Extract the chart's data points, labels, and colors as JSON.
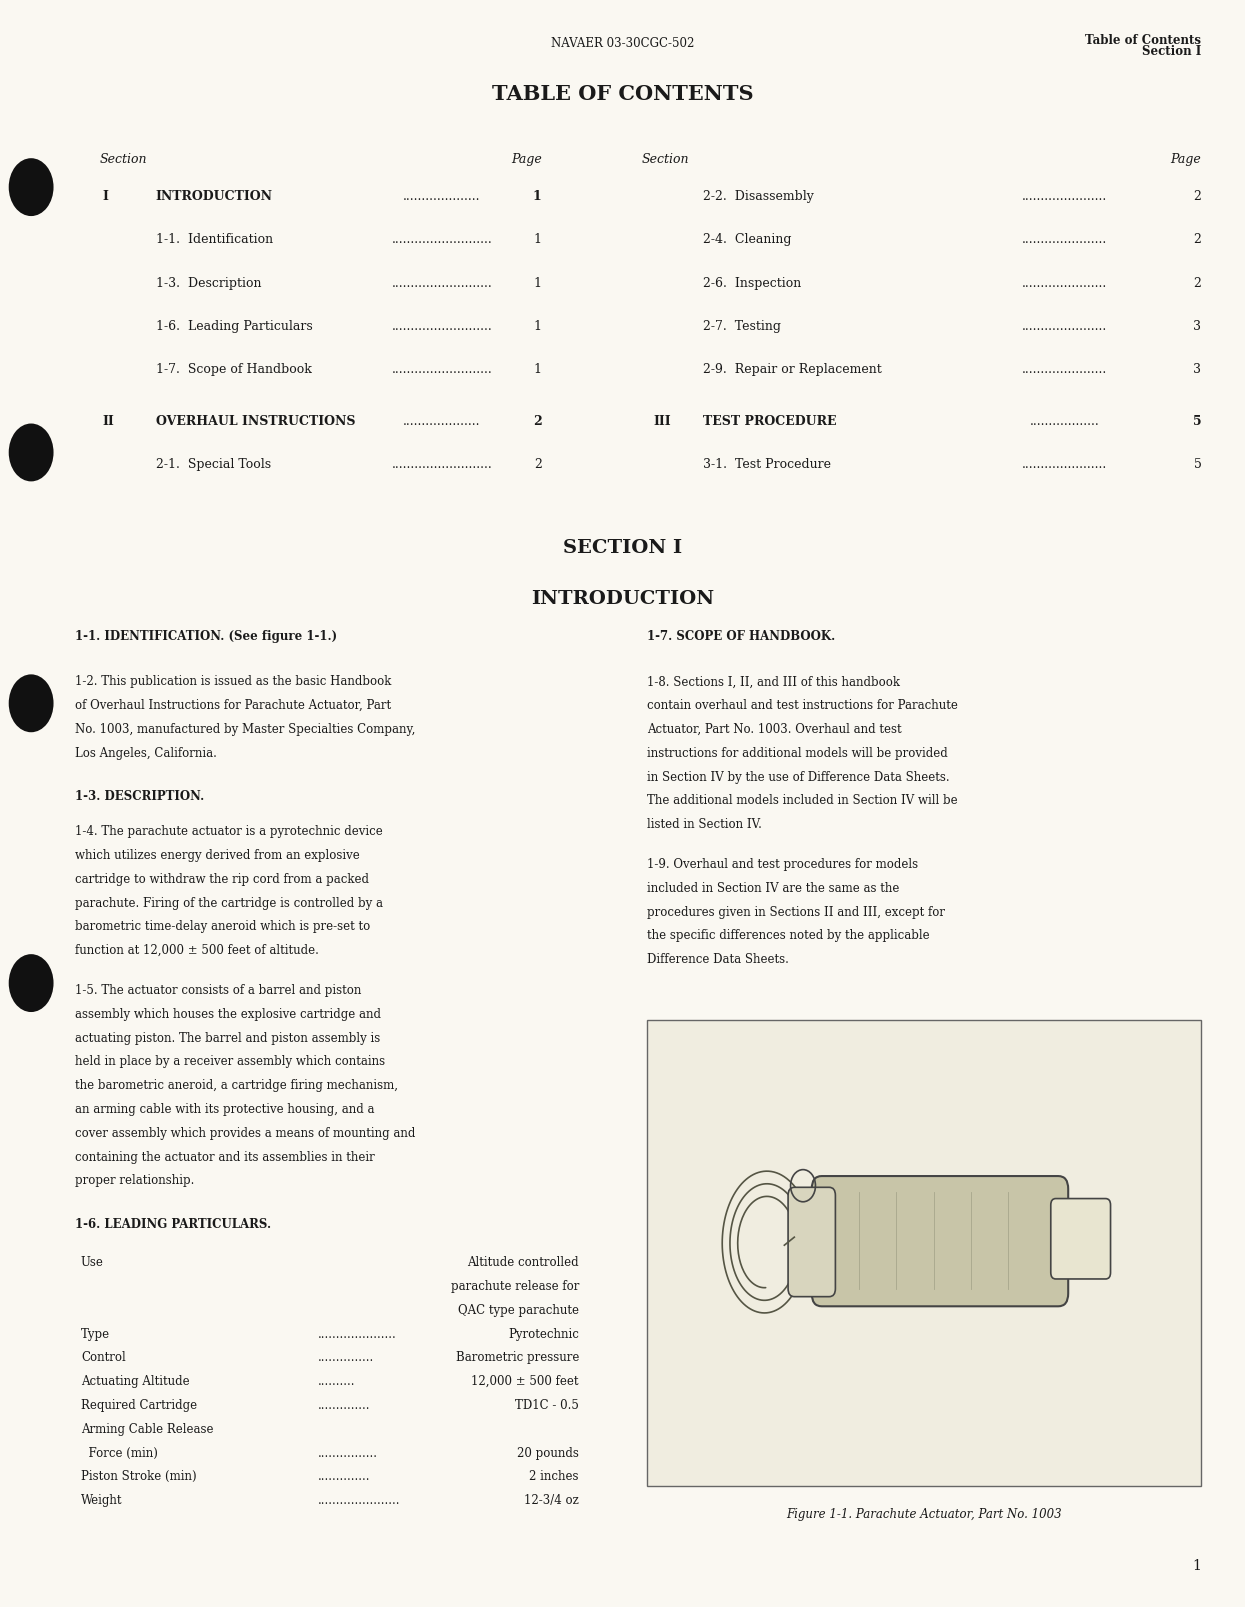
{
  "bg_color": "#faf8f2",
  "text_color": "#1a1a1a",
  "header_left": "NAVAER 03-30CGC-502",
  "header_right_line1": "Table of Contents",
  "header_right_line2": "Section I",
  "toc_title": "TABLE OF CONTENTS",
  "section_i_title": "SECTION I",
  "section_i_subtitle": "INTRODUCTION",
  "para_1_1_header": "1-1. IDENTIFICATION. (See figure 1-1.)",
  "para_1_7_header": "1-7. SCOPE OF HANDBOOK.",
  "para_1_2_text": "1-2. This publication is issued as the basic Handbook of Overhaul Instructions for Parachute Actuator, Part No. 1003, manufactured by Master Specialties Company, Los Angeles, California.",
  "para_1_8_text": "1-8. Sections I, II, and III of this handbook contain overhaul and test instructions for Parachute Actuator, Part No. 1003. Overhaul and test instructions for additional models will be provided in Section IV by the use of Difference Data Sheets. The additional models included in Section IV will be listed in Section IV.",
  "para_1_3_header": "1-3. DESCRIPTION.",
  "para_1_4_text": "1-4. The parachute actuator is a pyrotechnic device which utilizes energy derived from an explosive cartridge to withdraw the rip cord from a packed parachute. Firing of the cartridge is controlled by a barometric time-delay aneroid which is pre-set to function at 12,000 ± 500 feet of altitude.",
  "para_1_9_text": "1-9. Overhaul and test procedures for models included in Section IV are the same as the procedures given in Sections II and III, except for the specific differences noted by the applicable Difference Data Sheets.",
  "para_1_5_text": "1-5. The actuator consists of a barrel and piston assembly which houses the explosive cartridge and actuating piston. The barrel and piston assembly is held in place by a receiver assembly which contains the barometric aneroid, a cartridge firing mechanism, an arming cable with its protective housing, and a cover assembly which provides a means of mounting and containing the actuator and its assemblies in their proper relationship.",
  "para_1_6_header": "1-6. LEADING PARTICULARS.",
  "figure_caption": "Figure 1-1. Parachute Actuator, Part No. 1003",
  "page_number": "1"
}
